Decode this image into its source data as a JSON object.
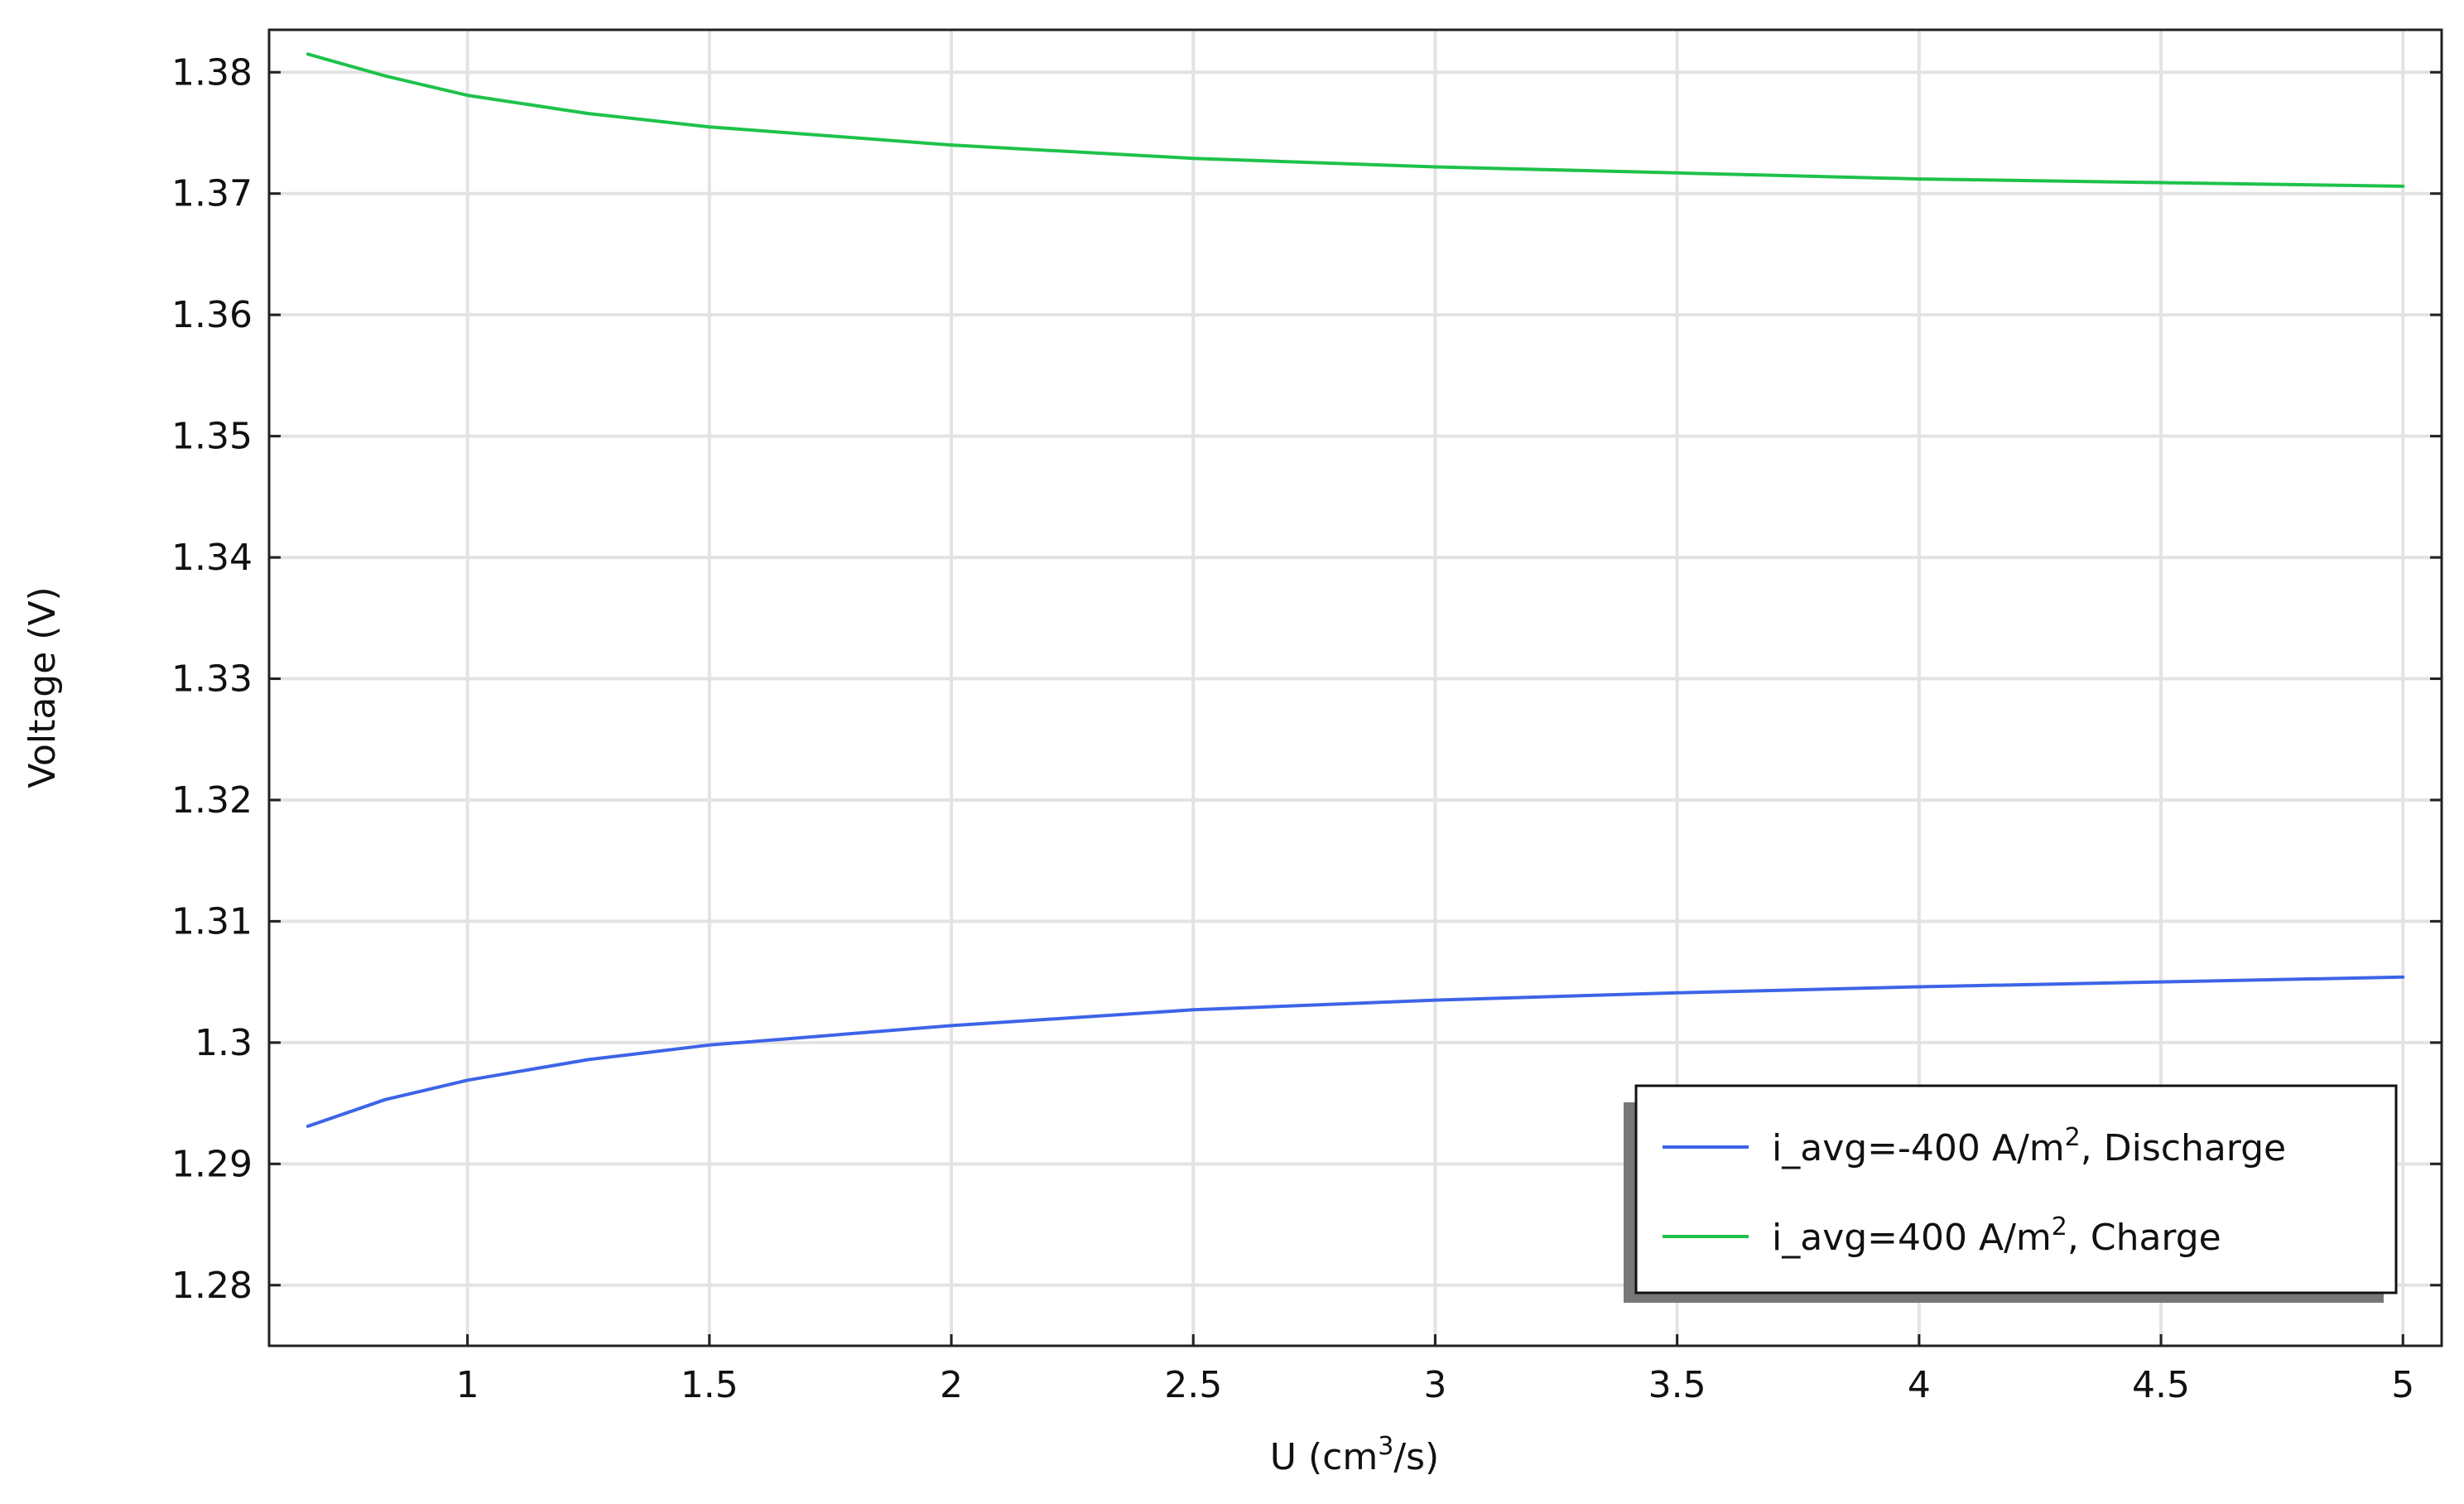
{
  "chart_data": {
    "type": "line",
    "xlabel": {
      "prefix": "U (cm",
      "sup": "3",
      "suffix": "/s)"
    },
    "ylabel": "Voltage (V)",
    "xlim": [
      0.59,
      5.08
    ],
    "ylim": [
      1.275,
      1.3835
    ],
    "x_ticks": [
      1,
      1.5,
      2,
      2.5,
      3,
      3.5,
      4,
      4.5,
      5
    ],
    "x_tick_labels": [
      "1",
      "1.5",
      "2",
      "2.5",
      "3",
      "3.5",
      "4",
      "4.5",
      "5"
    ],
    "y_ticks": [
      1.28,
      1.29,
      1.3,
      1.31,
      1.32,
      1.33,
      1.34,
      1.35,
      1.36,
      1.37,
      1.38
    ],
    "y_tick_labels": [
      "1.28",
      "1.29",
      "1.3",
      "1.31",
      "1.32",
      "1.33",
      "1.34",
      "1.35",
      "1.36",
      "1.37",
      "1.38"
    ],
    "grid": true,
    "legend_position": "bottom-right",
    "series": [
      {
        "name": {
          "prefix": "i_avg=-400 A/m",
          "sup": "2",
          "suffix": ", Discharge"
        },
        "color": "#3d64e8",
        "x": [
          0.67,
          0.83,
          1.0,
          1.25,
          1.5,
          2.0,
          2.5,
          3.0,
          3.5,
          4.0,
          4.5,
          5.0
        ],
        "y": [
          1.2931,
          1.2953,
          1.2969,
          1.2986,
          1.2998,
          1.3014,
          1.3027,
          1.3035,
          1.3041,
          1.3046,
          1.305,
          1.3054
        ]
      },
      {
        "name": {
          "prefix": "i_avg=400 A/m",
          "sup": "2",
          "suffix": ",  Charge"
        },
        "color": "#1ec24a",
        "x": [
          0.67,
          0.83,
          1.0,
          1.25,
          1.5,
          2.0,
          2.5,
          3.0,
          3.5,
          4.0,
          4.5,
          5.0
        ],
        "y": [
          1.3815,
          1.3797,
          1.3781,
          1.3766,
          1.3755,
          1.374,
          1.3729,
          1.3722,
          1.3717,
          1.3712,
          1.3709,
          1.3706
        ]
      }
    ]
  }
}
